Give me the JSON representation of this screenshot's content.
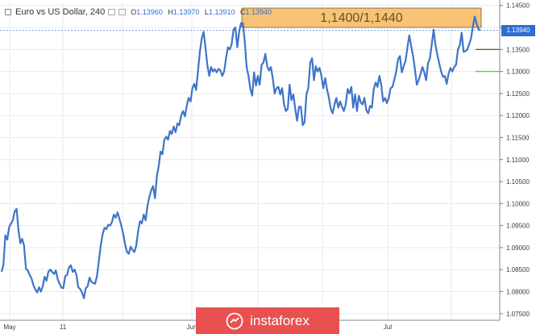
{
  "header": {
    "symbol": "Euro vs US Dollar, 240",
    "open_label": "O",
    "open_value": "1.13960",
    "high_label": "H",
    "high_value": "1.13970",
    "low_label": "L",
    "low_value": "1.13910",
    "close_label": "C",
    "close_value": "1.13940"
  },
  "zone_label": "1,1400/1,1440",
  "price_tag": "1.13940",
  "watermark": {
    "text": "instaforex"
  },
  "colors": {
    "line": "#3f74c8",
    "zone": "#f7b95c",
    "price_tag": "#2d6ed6",
    "grid": "#e8eaef",
    "level_dark": "#3c7d28",
    "level_light": "#4ad64a",
    "watermark": "#e8514f"
  },
  "chart_data": {
    "type": "line",
    "title": "",
    "xlabel": "",
    "ylabel": "",
    "ylim": [
      1.0735,
      1.1455
    ],
    "y_ticks": [
      "1.14500",
      "1.14000",
      "1.13500",
      "1.13000",
      "1.12500",
      "1.12000",
      "1.11500",
      "1.11000",
      "1.10500",
      "1.10000",
      "1.09500",
      "1.09000",
      "1.08500",
      "1.08000",
      "1.07500"
    ],
    "x_ticks": [
      "May",
      "11",
      "Jun",
      "Jul"
    ],
    "series": [
      {
        "values": [
          1.0845,
          1.0862,
          1.0928,
          1.0918,
          1.0946,
          1.0955,
          1.0962,
          1.0982,
          1.0988,
          1.094,
          1.091,
          1.092,
          1.0905,
          1.0852,
          1.0848,
          1.0838,
          1.083,
          1.0815,
          1.0805,
          1.0798,
          1.081,
          1.08,
          1.0812,
          1.0834,
          1.0825,
          1.0845,
          1.085,
          1.0845,
          1.084,
          1.0848,
          1.0828,
          1.0818,
          1.0809,
          1.0808,
          1.0835,
          1.0838,
          1.0855,
          1.086,
          1.0845,
          1.085,
          1.0838,
          1.081,
          1.0806,
          1.0798,
          1.0785,
          1.0808,
          1.0812,
          1.0832,
          1.0822,
          1.082,
          1.0818,
          1.0835,
          1.087,
          1.0905,
          1.093,
          1.0945,
          1.0942,
          1.0952,
          1.095,
          1.0958,
          1.0975,
          1.0968,
          1.098,
          1.0965,
          1.095,
          1.0932,
          1.0908,
          1.089,
          1.0886,
          1.0902,
          1.0895,
          1.089,
          1.0905,
          1.0938,
          1.096,
          1.0955,
          1.0975,
          1.0962,
          1.0995,
          1.1015,
          1.103,
          1.104,
          1.1012,
          1.1062,
          1.1085,
          1.1118,
          1.1112,
          1.1145,
          1.1152,
          1.1145,
          1.1165,
          1.1158,
          1.1175,
          1.1162,
          1.1182,
          1.1178,
          1.12,
          1.121,
          1.1198,
          1.1222,
          1.124,
          1.1232,
          1.1262,
          1.1272,
          1.1258,
          1.13,
          1.1345,
          1.1375,
          1.139,
          1.1355,
          1.1315,
          1.129,
          1.131,
          1.13,
          1.1305,
          1.1298,
          1.1306,
          1.1302,
          1.129,
          1.13,
          1.133,
          1.1355,
          1.135,
          1.1362,
          1.1395,
          1.14,
          1.1355,
          1.139,
          1.141,
          1.141,
          1.137,
          1.131,
          1.129,
          1.126,
          1.1245,
          1.1298,
          1.1268,
          1.129,
          1.127,
          1.1315,
          1.132,
          1.134,
          1.1312,
          1.1302,
          1.131,
          1.1285,
          1.125,
          1.1262,
          1.1265,
          1.1248,
          1.1262,
          1.1225,
          1.121,
          1.1215,
          1.127,
          1.1235,
          1.1248,
          1.1215,
          1.1188,
          1.122,
          1.122,
          1.1178,
          1.1185,
          1.1248,
          1.1262,
          1.132,
          1.133,
          1.128,
          1.1312,
          1.13,
          1.1308,
          1.129,
          1.1262,
          1.1285,
          1.126,
          1.124,
          1.1215,
          1.1205,
          1.1225,
          1.124,
          1.1218,
          1.1232,
          1.122,
          1.121,
          1.1225,
          1.126,
          1.125,
          1.1265,
          1.1218,
          1.1248,
          1.121,
          1.1245,
          1.123,
          1.1225,
          1.124,
          1.1212,
          1.1205,
          1.1222,
          1.1218,
          1.126,
          1.1275,
          1.1265,
          1.129,
          1.127,
          1.1232,
          1.124,
          1.1228,
          1.124,
          1.1262,
          1.1265,
          1.1282,
          1.13,
          1.1328,
          1.1335,
          1.1298,
          1.1312,
          1.1325,
          1.1355,
          1.1382,
          1.1358,
          1.1335,
          1.1305,
          1.127,
          1.128,
          1.1295,
          1.131,
          1.1298,
          1.128,
          1.1318,
          1.133,
          1.1362,
          1.1395,
          1.136,
          1.1338,
          1.1318,
          1.13,
          1.1288,
          1.129,
          1.1272,
          1.1296,
          1.1308,
          1.13,
          1.131,
          1.1315,
          1.135,
          1.136,
          1.1388,
          1.1345,
          1.1346,
          1.135,
          1.1362,
          1.1375,
          1.1402,
          1.1425,
          1.1408,
          1.1396,
          1.1394
        ]
      }
    ],
    "levels": [
      1.135,
      1.13
    ],
    "zone": [
      1.14,
      1.1444
    ],
    "crosshair": 1.1394,
    "grid": true
  }
}
